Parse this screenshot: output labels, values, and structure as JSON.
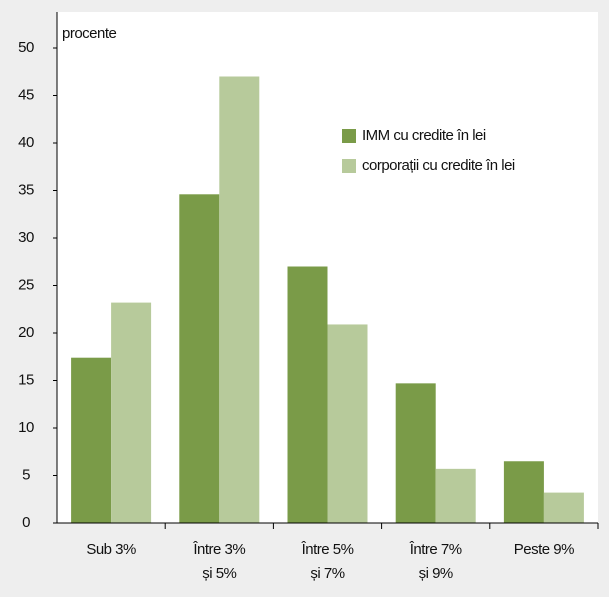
{
  "chart_data": {
    "type": "bar",
    "y_label": "procente",
    "categories": [
      [
        "Sub 3%"
      ],
      [
        "Între 3%",
        "și 5%"
      ],
      [
        "Între 5%",
        "și 7%"
      ],
      [
        "Între 7%",
        "și 9%"
      ],
      [
        "Peste 9%"
      ]
    ],
    "series": [
      {
        "name": "IMM cu credite în lei",
        "color": "#7a9b48",
        "values": [
          17.4,
          34.6,
          27,
          14.7,
          6.5
        ]
      },
      {
        "name": "corporații cu credite în lei",
        "color": "#b7ca9b",
        "values": [
          23.2,
          47,
          20.9,
          5.7,
          3.2
        ]
      }
    ],
    "ylim": [
      0,
      50
    ],
    "yticks": [
      0,
      5,
      10,
      15,
      20,
      25,
      30,
      35,
      40,
      45,
      50
    ],
    "grid": false,
    "legend": "top-right"
  }
}
